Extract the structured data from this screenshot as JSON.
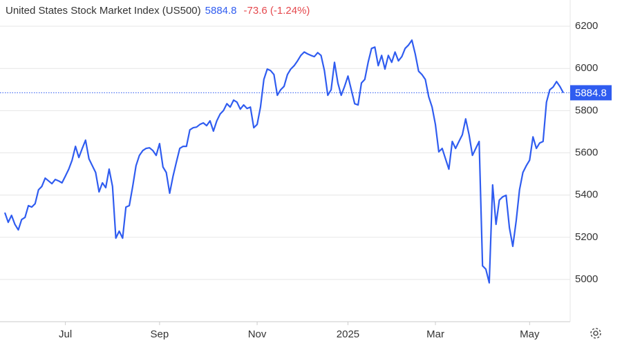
{
  "chart_data": {
    "type": "line",
    "title": "United States Stock Market Index (US500)",
    "last": 5884.8,
    "change": "-73.6 (-1.24%)",
    "series": [
      {
        "name": "US500",
        "color": "#2f5cf0",
        "values": [
          5317,
          5271,
          5304,
          5261,
          5235,
          5284,
          5294,
          5350,
          5343,
          5359,
          5425,
          5441,
          5480,
          5467,
          5454,
          5474,
          5467,
          5458,
          5490,
          5523,
          5565,
          5631,
          5578,
          5621,
          5660,
          5572,
          5539,
          5507,
          5415,
          5458,
          5435,
          5523,
          5441,
          5196,
          5229,
          5196,
          5343,
          5350,
          5441,
          5539,
          5588,
          5611,
          5621,
          5624,
          5611,
          5588,
          5644,
          5533,
          5507,
          5409,
          5490,
          5556,
          5621,
          5631,
          5631,
          5709,
          5719,
          5722,
          5735,
          5742,
          5729,
          5752,
          5703,
          5752,
          5784,
          5801,
          5833,
          5817,
          5850,
          5840,
          5807,
          5827,
          5810,
          5817,
          5719,
          5735,
          5817,
          5948,
          5997,
          5990,
          5971,
          5873,
          5899,
          5915,
          5971,
          5997,
          6013,
          6036,
          6062,
          6078,
          6069,
          6062,
          6056,
          6075,
          6062,
          5990,
          5873,
          5899,
          6029,
          5931,
          5873,
          5915,
          5964,
          5899,
          5833,
          5827,
          5931,
          5948,
          6029,
          6095,
          6101,
          6013,
          6062,
          5997,
          6062,
          6029,
          6078,
          6036,
          6056,
          6095,
          6111,
          6134,
          6069,
          5987,
          5971,
          5948,
          5866,
          5817,
          5735,
          5605,
          5621,
          5572,
          5523,
          5654,
          5621,
          5654,
          5686,
          5761,
          5686,
          5588,
          5621,
          5654,
          5065,
          5049,
          4984,
          5448,
          5261,
          5376,
          5392,
          5399,
          5245,
          5157,
          5278,
          5425,
          5507,
          5539,
          5565,
          5676,
          5621,
          5647,
          5654,
          5840,
          5899,
          5912,
          5938,
          5915,
          5884.8
        ]
      }
    ],
    "xlim": [
      0,
      166
    ],
    "xticks": [
      {
        "value": 18,
        "label": "Jul"
      },
      {
        "value": 46,
        "label": "Sep"
      },
      {
        "value": 75,
        "label": "Nov"
      },
      {
        "value": 102,
        "label": "2025"
      },
      {
        "value": 128,
        "label": "Mar"
      },
      {
        "value": 156,
        "label": "May"
      }
    ],
    "ylim": [
      4800,
      6260
    ],
    "yticks": [
      5000,
      5200,
      5400,
      5600,
      5800,
      6000,
      6200
    ],
    "grid": true
  }
}
